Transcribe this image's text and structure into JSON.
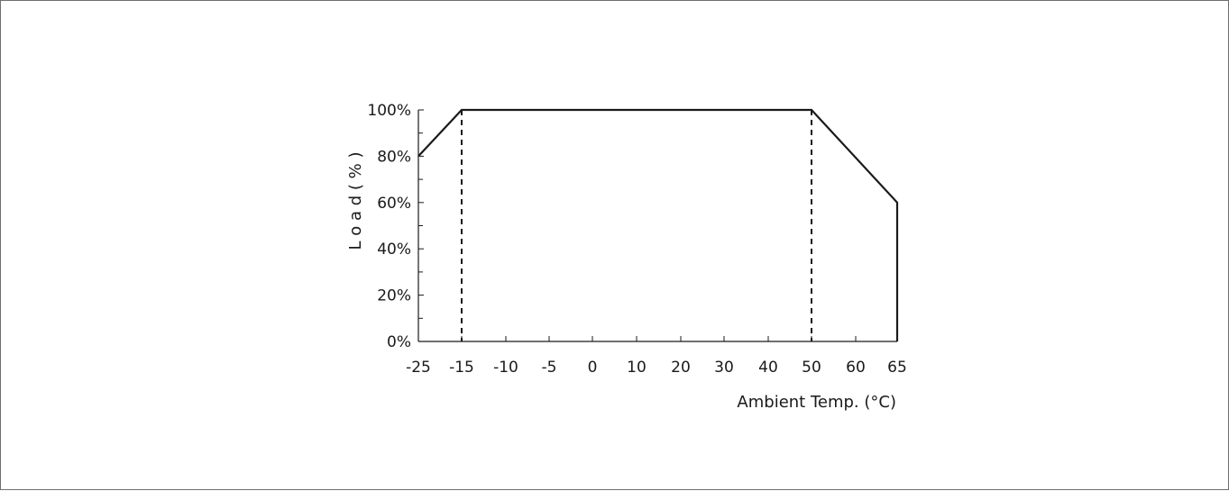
{
  "chart_data": {
    "type": "line",
    "title": "",
    "xlabel": "Ambient Temp. (°C)",
    "ylabel": "L o a d ( % )",
    "x_ticks": [
      "-25",
      "-15",
      "-10",
      "-5",
      "0",
      "10",
      "20",
      "30",
      "40",
      "50",
      "60",
      "65"
    ],
    "y_ticks": [
      "0%",
      "20%",
      "40%",
      "60%",
      "80%",
      "100%"
    ],
    "ylim": [
      0,
      100
    ],
    "series": [
      {
        "x": [
          "-25",
          "-15",
          "50",
          "65",
          "65"
        ],
        "y": [
          80,
          100,
          100,
          60,
          0
        ]
      }
    ],
    "reference_lines": [
      {
        "x": "-15",
        "style": "dashed"
      },
      {
        "x": "50",
        "style": "dashed"
      }
    ],
    "grid": false,
    "line_color": "#1a1a1a"
  }
}
